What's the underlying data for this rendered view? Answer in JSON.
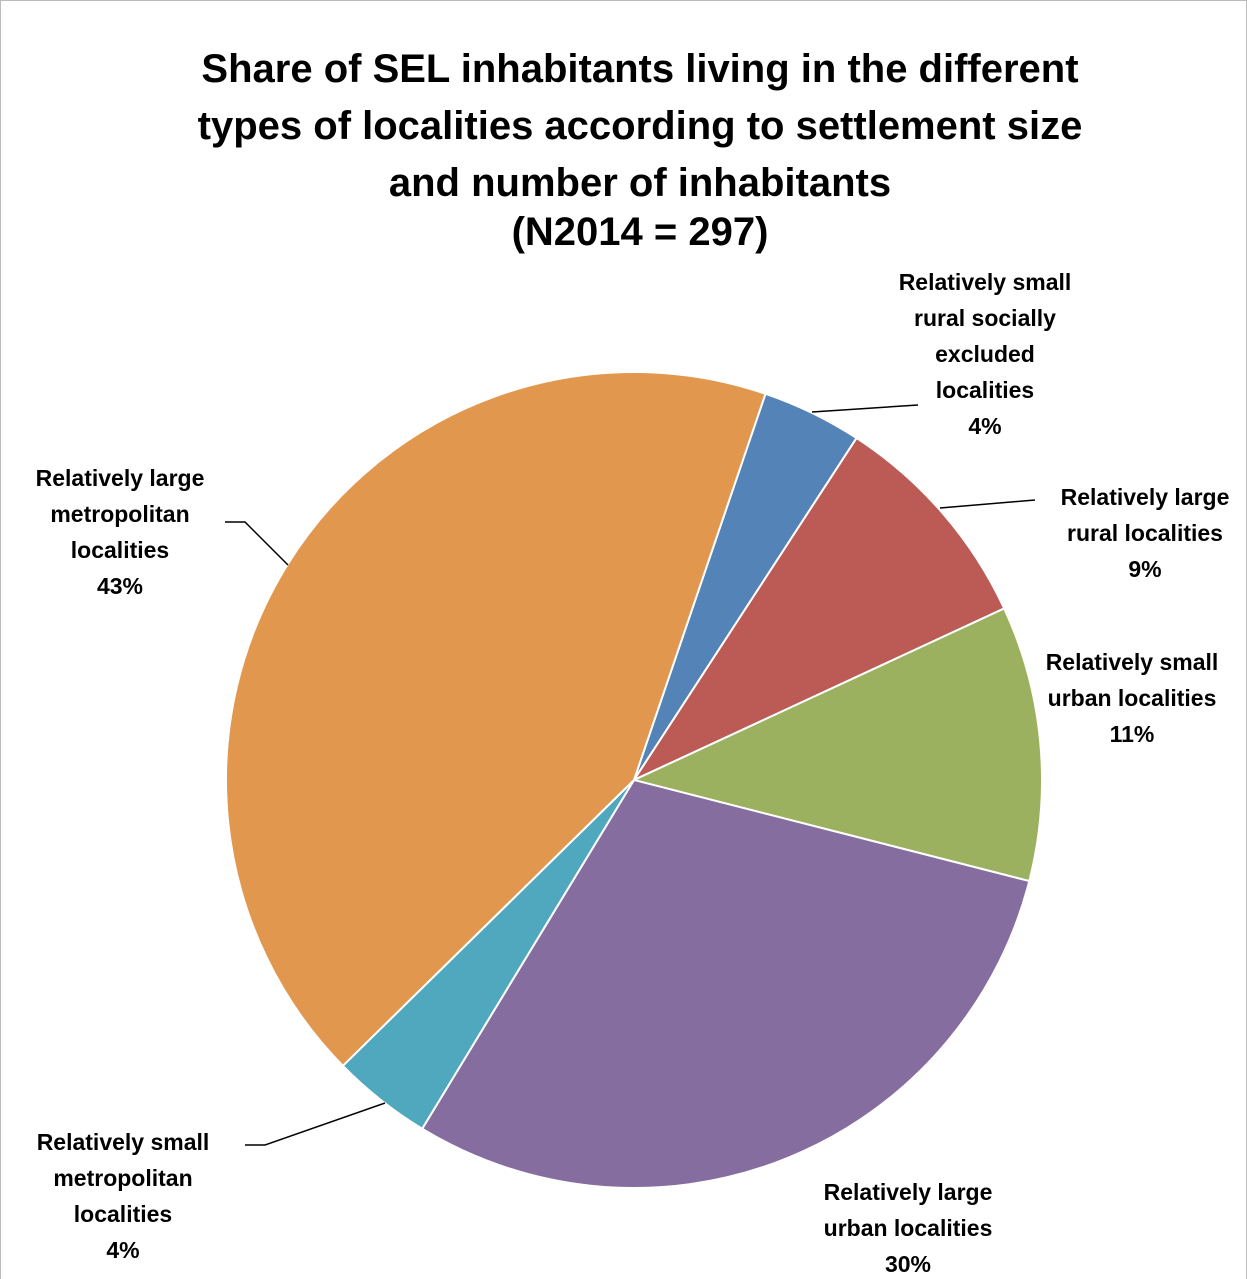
{
  "chart_data": {
    "type": "pie",
    "title": "Share of SEL inhabitants living in the different types of localities according to settlement size and number of inhabitants",
    "subtitle": "(N2014 = 297)",
    "categories": [
      "Relatively small rural socially excluded localities",
      "Relatively large rural localities",
      "Relatively small urban localities",
      "Relatively large urban localities",
      "Relatively small metropolitan localities",
      "Relatively large metropolitan localities"
    ],
    "values": [
      4,
      9,
      11,
      30,
      4,
      43
    ],
    "value_labels": [
      "4%",
      "9%",
      "11%",
      "30%",
      "4%",
      "43%"
    ],
    "colors": [
      "#5483b8",
      "#bc5b55",
      "#9cb15f",
      "#866d9f",
      "#4fa8be",
      "#e2974f"
    ]
  }
}
